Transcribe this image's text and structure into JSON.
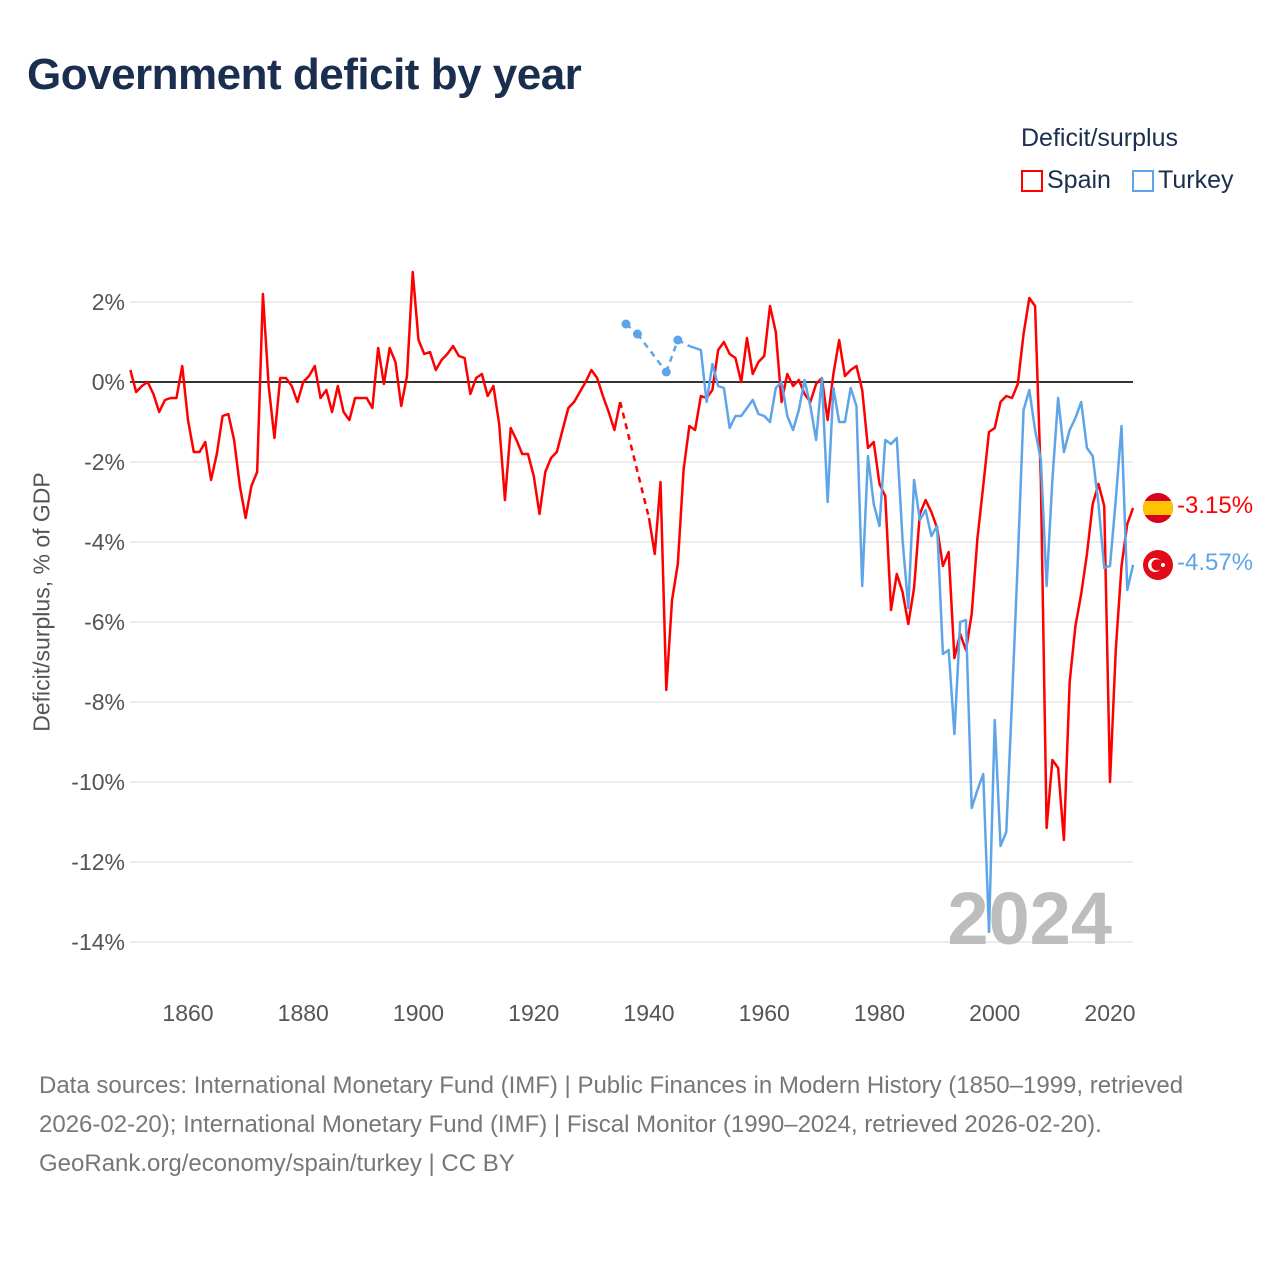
{
  "title": "Government deficit by year",
  "legend": {
    "title": "Deficit/surplus",
    "items": [
      {
        "name": "Spain",
        "color": "#ff0000"
      },
      {
        "name": "Turkey",
        "color": "#5ea5e8"
      }
    ]
  },
  "end_labels": {
    "spain": "-3.15%",
    "turkey": "-4.57%"
  },
  "year_watermark": "2024",
  "footer": {
    "sources": "Data sources: International Monetary Fund (IMF) | Public Finances in Modern History (1850–1999, retrieved 2026-02-20); International Monetary Fund (IMF) | Fiscal Monitor (1990–2024, retrieved 2026-02-20).",
    "credit": "GeoRank.org/economy/spain/turkey | CC BY"
  },
  "chart_data": {
    "type": "line",
    "title": "Government deficit by year",
    "ylabel": "Deficit/surplus, % of GDP",
    "xlabel": "",
    "xlim": [
      1850,
      2024
    ],
    "ylim": [
      -15,
      3
    ],
    "xticks": [
      1860,
      1880,
      1900,
      1920,
      1940,
      1960,
      1980,
      2000,
      2020
    ],
    "xtick_labels": [
      "1860",
      "1880",
      "1900",
      "1920",
      "1940",
      "1960",
      "1980",
      "2000",
      "2020"
    ],
    "yticks": [
      2,
      0,
      -2,
      -4,
      -6,
      -8,
      -10,
      -12,
      -14
    ],
    "ytick_labels": [
      "2%",
      "0%",
      "-2%",
      "-4%",
      "-6%",
      "-8%",
      "-10%",
      "-12%",
      "-14%"
    ],
    "grid": true,
    "legend_position": "top-right",
    "series": [
      {
        "name": "Spain",
        "start_year": 1850,
        "values": [
          0.3,
          -0.25,
          -0.1,
          0,
          -0.3,
          -0.75,
          -0.45,
          -0.4,
          -0.4,
          0.4,
          -0.95,
          -1.75,
          -1.75,
          -1.5,
          -2.45,
          -1.8,
          -0.85,
          -0.8,
          -1.45,
          -2.6,
          -3.4,
          -2.6,
          -2.25,
          2.2,
          -0.1,
          -1.4,
          0.1,
          0.1,
          -0.1,
          -0.5,
          0,
          0.15,
          0.4,
          -0.4,
          -0.2,
          -0.75,
          -0.1,
          -0.75,
          -0.95,
          -0.4,
          -0.4,
          -0.4,
          -0.65,
          0.85,
          -0.05,
          0.85,
          0.5,
          -0.6,
          0.15,
          2.75,
          1.05,
          0.7,
          0.75,
          0.3,
          0.55,
          0.7,
          0.9,
          0.65,
          0.6,
          -0.3,
          0.1,
          0.2,
          -0.35,
          -0.1,
          -1.05,
          -2.95,
          -1.15,
          -1.45,
          -1.8,
          -1.8,
          -2.35,
          -3.3,
          -2.25,
          -1.9,
          -1.75,
          -1.2,
          -0.65,
          -0.5,
          -0.25,
          0,
          0.3,
          0.1,
          -0.35,
          -0.75,
          -1.2,
          -0.5,
          null,
          null,
          null,
          null,
          -3.4,
          -4.3,
          -2.5,
          -7.7,
          -5.45,
          -4.55,
          -2.2,
          -1.1,
          -1.2,
          -0.35,
          -0.4,
          -0.2,
          0.8,
          1.0,
          0.7,
          0.6,
          0,
          1.1,
          0.2,
          0.5,
          0.65,
          1.9,
          1.25,
          -0.5,
          0.2,
          -0.1,
          0.05,
          -0.3,
          -0.5,
          -0.05,
          0.1,
          -0.95,
          0.2,
          1.05,
          0.15,
          0.3,
          0.4,
          -0.2,
          -1.65,
          -1.5,
          -2.55,
          -2.85,
          -5.7,
          -4.8,
          -5.25,
          -6.05,
          -5.15,
          -3.3,
          -2.95,
          -3.25,
          -3.65,
          -4.6,
          -4.25,
          -6.9,
          -6.3,
          -6.7,
          -5.8,
          -3.9,
          -2.6,
          -1.25,
          -1.15,
          -0.5,
          -0.35,
          -0.4,
          -0.05,
          1.2,
          2.1,
          1.9,
          -2.45,
          -11.15,
          -9.45,
          -9.65,
          -11.45,
          -7.5,
          -6.1,
          -5.3,
          -4.3,
          -3.05,
          -2.55,
          -3.1,
          -10.0,
          -6.7,
          -4.6,
          -3.55,
          -3.15
        ]
      },
      {
        "name": "Turkey",
        "start_year": 1936,
        "values": [
          1.45,
          null,
          1.2,
          null,
          null,
          null,
          null,
          0.25,
          null,
          1.05,
          null,
          0.9,
          0.85,
          0.8,
          -0.5,
          0.45,
          -0.1,
          -0.15,
          -1.15,
          -0.85,
          -0.85,
          -0.65,
          -0.45,
          -0.8,
          -0.85,
          -1.0,
          -0.15,
          0,
          -0.85,
          -1.2,
          -0.7,
          0.05,
          -0.6,
          -1.45,
          0.1,
          -3.0,
          -0.15,
          -1.0,
          -1.0,
          -0.15,
          -0.6,
          -5.1,
          -1.85,
          -3.05,
          -3.6,
          -1.45,
          -1.55,
          -1.4,
          -3.95,
          -5.65,
          -2.45,
          -3.45,
          -3.2,
          -3.85,
          -3.6,
          -6.8,
          -6.7,
          -8.8,
          -6.0,
          -5.95,
          -10.65,
          -10.2,
          -9.8,
          -13.75,
          -8.45,
          -11.6,
          -11.25,
          -7.95,
          -4.45,
          -0.7,
          -0.2,
          -1.2,
          -1.95,
          -5.1,
          -2.45,
          -0.4,
          -1.75,
          -1.2,
          -0.9,
          -0.5,
          -1.65,
          -1.85,
          -3.05,
          -4.65,
          -4.6,
          -2.95,
          -1.1,
          -5.2,
          -4.57
        ]
      }
    ]
  }
}
